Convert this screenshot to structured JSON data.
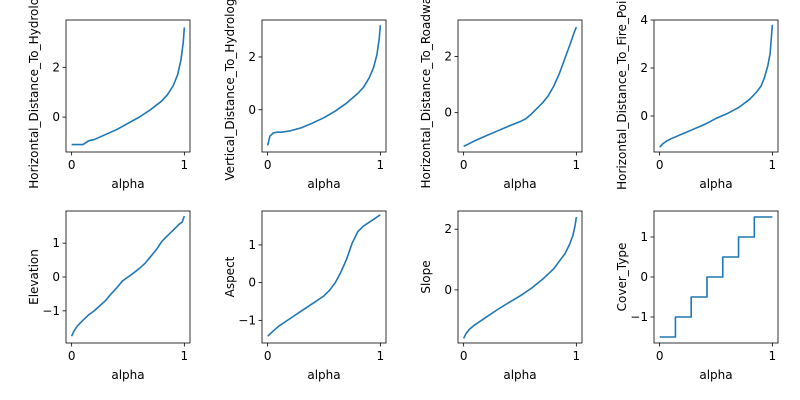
{
  "figure": {
    "line_color": "#1f77b4",
    "axes_color": "#000000",
    "background": "#ffffff"
  },
  "chart_data": [
    {
      "type": "line",
      "xlabel": "alpha",
      "ylabel": "Horizontal_Distance_To_Hydrology",
      "xlim": [
        -0.05,
        1.05
      ],
      "ylim": [
        -1.4,
        3.9
      ],
      "xticks": [
        0,
        1
      ],
      "yticks": [
        0,
        2
      ],
      "x": [
        0,
        0.1,
        0.15,
        0.2,
        0.3,
        0.4,
        0.5,
        0.6,
        0.7,
        0.8,
        0.85,
        0.9,
        0.94,
        0.97,
        0.99,
        1.0
      ],
      "y": [
        -1.1,
        -1.1,
        -0.95,
        -0.9,
        -0.7,
        -0.5,
        -0.25,
        0.0,
        0.3,
        0.65,
        0.9,
        1.25,
        1.7,
        2.3,
        3.0,
        3.6
      ]
    },
    {
      "type": "line",
      "xlabel": "alpha",
      "ylabel": "Vertical_Distance_To_Hydrology",
      "xlim": [
        -0.05,
        1.05
      ],
      "ylim": [
        -1.6,
        3.4
      ],
      "xticks": [
        0,
        1
      ],
      "yticks": [
        0,
        2
      ],
      "x": [
        0,
        0.02,
        0.05,
        0.08,
        0.12,
        0.2,
        0.3,
        0.4,
        0.5,
        0.6,
        0.7,
        0.8,
        0.85,
        0.9,
        0.94,
        0.97,
        0.99,
        1.0
      ],
      "y": [
        -1.35,
        -1.0,
        -0.88,
        -0.85,
        -0.85,
        -0.8,
        -0.68,
        -0.5,
        -0.3,
        -0.05,
        0.25,
        0.62,
        0.85,
        1.2,
        1.6,
        2.1,
        2.7,
        3.2
      ]
    },
    {
      "type": "line",
      "xlabel": "alpha",
      "ylabel": "Horizontal_Distance_To_Roadways",
      "xlim": [
        -0.05,
        1.05
      ],
      "ylim": [
        -1.4,
        3.3
      ],
      "xticks": [
        0,
        1
      ],
      "yticks": [
        0,
        2
      ],
      "x": [
        0,
        0.05,
        0.1,
        0.2,
        0.3,
        0.4,
        0.5,
        0.55,
        0.6,
        0.7,
        0.75,
        0.8,
        0.85,
        0.9,
        0.95,
        0.98,
        1.0
      ],
      "y": [
        -1.2,
        -1.1,
        -1.0,
        -0.82,
        -0.65,
        -0.48,
        -0.32,
        -0.22,
        -0.05,
        0.35,
        0.6,
        0.95,
        1.4,
        1.95,
        2.5,
        2.85,
        3.05
      ]
    },
    {
      "type": "line",
      "xlabel": "alpha",
      "ylabel": "Horizontal_Distance_To_Fire_Points",
      "xlim": [
        -0.05,
        1.05
      ],
      "ylim": [
        -1.5,
        4.0
      ],
      "xticks": [
        0,
        1
      ],
      "yticks": [
        0,
        2,
        4
      ],
      "x": [
        0,
        0.03,
        0.06,
        0.1,
        0.2,
        0.3,
        0.4,
        0.5,
        0.6,
        0.7,
        0.8,
        0.86,
        0.9,
        0.93,
        0.96,
        0.98,
        0.99,
        1.0
      ],
      "y": [
        -1.3,
        -1.15,
        -1.05,
        -0.95,
        -0.75,
        -0.55,
        -0.35,
        -0.1,
        0.1,
        0.35,
        0.7,
        1.0,
        1.25,
        1.6,
        2.1,
        2.6,
        3.2,
        3.8
      ]
    },
    {
      "type": "line",
      "xlabel": "alpha",
      "ylabel": "Elevation",
      "xlim": [
        -0.05,
        1.05
      ],
      "ylim": [
        -1.95,
        1.95
      ],
      "xticks": [
        0,
        1
      ],
      "yticks": [
        -1,
        0,
        1
      ],
      "x": [
        0,
        0.02,
        0.05,
        0.1,
        0.15,
        0.2,
        0.25,
        0.3,
        0.35,
        0.4,
        0.45,
        0.5,
        0.55,
        0.6,
        0.65,
        0.7,
        0.75,
        0.8,
        0.85,
        0.9,
        0.95,
        0.98,
        1.0
      ],
      "y": [
        -1.75,
        -1.6,
        -1.45,
        -1.28,
        -1.12,
        -1.0,
        -0.85,
        -0.7,
        -0.5,
        -0.32,
        -0.12,
        0.0,
        0.12,
        0.25,
        0.4,
        0.6,
        0.8,
        1.05,
        1.22,
        1.38,
        1.55,
        1.62,
        1.8
      ]
    },
    {
      "type": "line",
      "xlabel": "alpha",
      "ylabel": "Aspect",
      "xlim": [
        -0.05,
        1.05
      ],
      "ylim": [
        -1.6,
        1.9
      ],
      "xticks": [
        0,
        1
      ],
      "yticks": [
        -1,
        0,
        1
      ],
      "x": [
        0,
        0.05,
        0.1,
        0.2,
        0.3,
        0.4,
        0.5,
        0.55,
        0.6,
        0.65,
        0.7,
        0.75,
        0.8,
        0.85,
        0.9,
        0.95,
        1.0
      ],
      "y": [
        -1.42,
        -1.28,
        -1.15,
        -0.95,
        -0.75,
        -0.55,
        -0.35,
        -0.2,
        0.0,
        0.28,
        0.62,
        1.05,
        1.35,
        1.5,
        1.6,
        1.7,
        1.8
      ]
    },
    {
      "type": "line",
      "xlabel": "alpha",
      "ylabel": "Slope",
      "xlim": [
        -0.05,
        1.05
      ],
      "ylim": [
        -1.75,
        2.6
      ],
      "xticks": [
        0,
        1
      ],
      "yticks": [
        0,
        2
      ],
      "x": [
        0,
        0.02,
        0.05,
        0.1,
        0.2,
        0.3,
        0.4,
        0.5,
        0.6,
        0.7,
        0.8,
        0.85,
        0.9,
        0.94,
        0.97,
        0.99,
        1.0
      ],
      "y": [
        -1.6,
        -1.45,
        -1.3,
        -1.15,
        -0.9,
        -0.65,
        -0.42,
        -0.2,
        0.05,
        0.35,
        0.7,
        0.95,
        1.2,
        1.5,
        1.8,
        2.15,
        2.4
      ]
    },
    {
      "type": "line",
      "xlabel": "alpha",
      "ylabel": "Cover_Type",
      "xlim": [
        -0.05,
        1.05
      ],
      "ylim": [
        -1.65,
        1.65
      ],
      "xticks": [
        0,
        1
      ],
      "yticks": [
        -1,
        0,
        1
      ],
      "step": true,
      "x": [
        0,
        0.14,
        0.14,
        0.28,
        0.28,
        0.42,
        0.42,
        0.56,
        0.56,
        0.7,
        0.7,
        0.84,
        0.84,
        1.0
      ],
      "y": [
        -1.5,
        -1.5,
        -1.0,
        -1.0,
        -0.5,
        -0.5,
        0.0,
        0.0,
        0.5,
        0.5,
        1.0,
        1.0,
        1.5,
        1.5
      ]
    }
  ]
}
